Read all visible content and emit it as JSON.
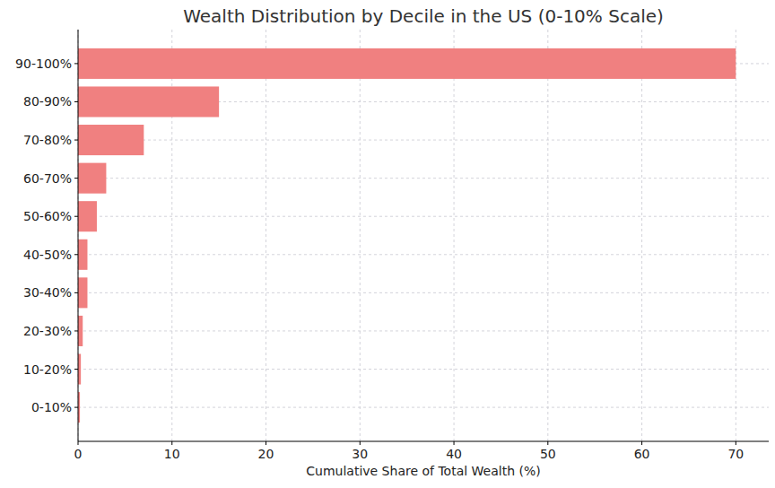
{
  "chart_data": {
    "type": "bar",
    "orientation": "horizontal",
    "title": "Wealth Distribution by Decile in the US (0-10% Scale)",
    "x_label": "Cumulative Share of Total Wealth (%)",
    "categories": [
      "0-10%",
      "10-20%",
      "20-30%",
      "30-40%",
      "40-50%",
      "50-60%",
      "60-70%",
      "70-80%",
      "80-90%",
      "90-100%"
    ],
    "values": [
      0.2,
      0.3,
      0.5,
      1,
      1,
      2,
      3,
      7,
      15,
      70
    ],
    "color": "#f08080",
    "xlim": [
      0,
      73.5
    ],
    "xticks": [
      0,
      10,
      20,
      30,
      40,
      50,
      60,
      70
    ],
    "grid": true
  }
}
